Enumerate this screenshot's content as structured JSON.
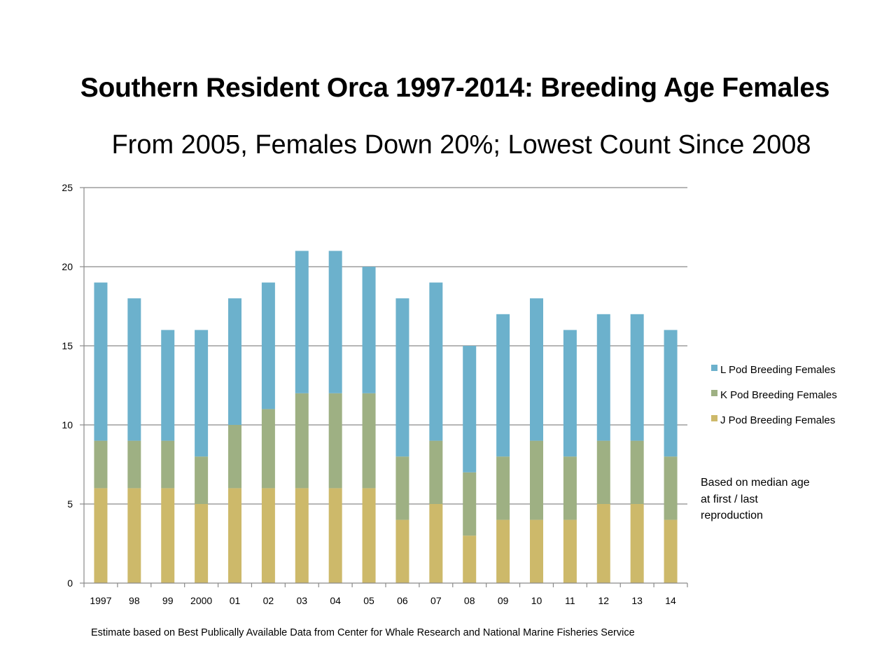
{
  "chart_data": {
    "type": "bar",
    "stacked": true,
    "title": "Southern Resident Orca 1997-2014: Breeding Age Females",
    "subtitle": "From 2005, Females Down 20%; Lowest Count Since 2008",
    "xlabel": "",
    "ylabel": "",
    "categories": [
      "1997",
      "98",
      "99",
      "2000",
      "01",
      "02",
      "03",
      "04",
      "05",
      "06",
      "07",
      "08",
      "09",
      "10",
      "11",
      "12",
      "13",
      "14"
    ],
    "series": [
      {
        "name": "J Pod Breeding Females",
        "color": "#cdb96a",
        "values": [
          6,
          6,
          6,
          5,
          6,
          6,
          6,
          6,
          6,
          4,
          5,
          3,
          4,
          4,
          4,
          5,
          5,
          4
        ]
      },
      {
        "name": "K Pod Breeding Females",
        "color": "#9eb083",
        "values": [
          3,
          3,
          3,
          3,
          4,
          5,
          6,
          6,
          6,
          4,
          4,
          4,
          4,
          5,
          4,
          4,
          4,
          4
        ]
      },
      {
        "name": "L Pod Breeding Females",
        "color": "#6cb1cc",
        "values": [
          10,
          9,
          7,
          8,
          8,
          8,
          9,
          9,
          8,
          10,
          10,
          8,
          9,
          9,
          8,
          8,
          8,
          8
        ]
      }
    ],
    "ylim": [
      0,
      25
    ],
    "yticks": [
      "0",
      "5",
      "10",
      "15",
      "20",
      "25"
    ],
    "grid": true,
    "legend": {
      "placement": "right",
      "order": [
        "L Pod Breeding Females",
        "K Pod Breeding Females",
        "J Pod Breeding Females"
      ]
    },
    "annotations": {
      "note_lines": [
        "Based on median age",
        "at first / last",
        "reproduction"
      ],
      "source": "Estimate based on Best Publically Available Data from Center for Whale Research and National Marine Fisheries Service"
    }
  }
}
